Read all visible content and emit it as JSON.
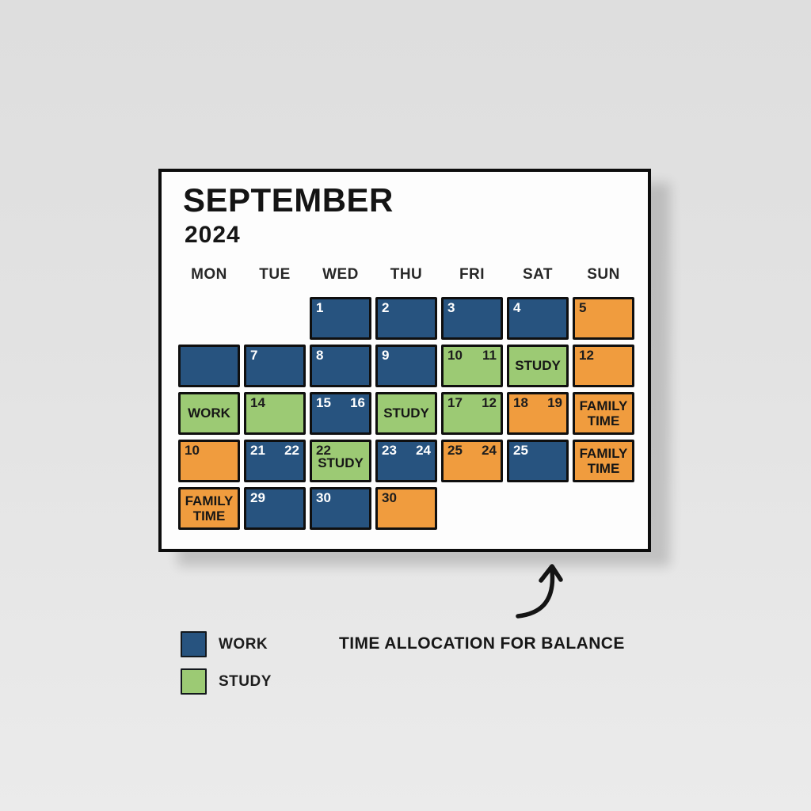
{
  "calendar": {
    "title": "SEPTEMBER",
    "year": "2024",
    "day_headers": [
      "MON",
      "TUE",
      "WED",
      "THU",
      "FRI",
      "SAT",
      "SUN"
    ],
    "rows": [
      [
        null,
        null,
        {
          "c": "blue",
          "n": "1"
        },
        {
          "c": "blue",
          "n": "2"
        },
        {
          "c": "blue",
          "n": "3"
        },
        {
          "c": "blue",
          "n": "4"
        },
        {
          "c": "orange",
          "n": "5"
        }
      ],
      [
        {
          "c": "blue"
        },
        {
          "c": "blue",
          "n": "7"
        },
        {
          "c": "blue",
          "n": "8"
        },
        {
          "c": "blue",
          "n": "9"
        },
        {
          "c": "green",
          "n": "10",
          "n2": "11"
        },
        {
          "c": "green",
          "label": "STUDY"
        },
        {
          "c": "orange",
          "n": "12"
        }
      ],
      [
        {
          "c": "green",
          "label": "WORK"
        },
        {
          "c": "green",
          "n": "14"
        },
        {
          "c": "blue",
          "n": "15",
          "n2": "16"
        },
        {
          "c": "green",
          "label": "STUDY"
        },
        {
          "c": "green",
          "n": "17",
          "n2": "12"
        },
        {
          "c": "orange",
          "n": "18",
          "n2": "19"
        },
        {
          "c": "orange",
          "label": "FAMILY TIME"
        }
      ],
      [
        {
          "c": "orange",
          "n": "10"
        },
        {
          "c": "blue",
          "n": "21",
          "n2": "22"
        },
        {
          "c": "green",
          "n": "22",
          "label": "STUDY"
        },
        {
          "c": "blue",
          "n": "23",
          "n2": "24"
        },
        {
          "c": "orange",
          "n": "25",
          "n2": "24"
        },
        {
          "c": "blue",
          "n": "25"
        },
        {
          "c": "orange",
          "label": "FAMILY TIME"
        }
      ],
      [
        {
          "c": "orange",
          "label": "FAMILY TIME"
        },
        {
          "c": "blue",
          "n": "29"
        },
        {
          "c": "blue",
          "n": "30"
        },
        {
          "c": "orange",
          "n": "30"
        },
        null,
        null,
        null
      ]
    ]
  },
  "colors": {
    "blue": "#27537f",
    "green": "#9cca74",
    "orange": "#f09c3e"
  },
  "legend": {
    "items": [
      {
        "label": "WORK",
        "color_key": "blue"
      },
      {
        "label": "STUDY",
        "color_key": "green"
      }
    ]
  },
  "caption": "TIME ALLOCATION FOR BALANCE"
}
